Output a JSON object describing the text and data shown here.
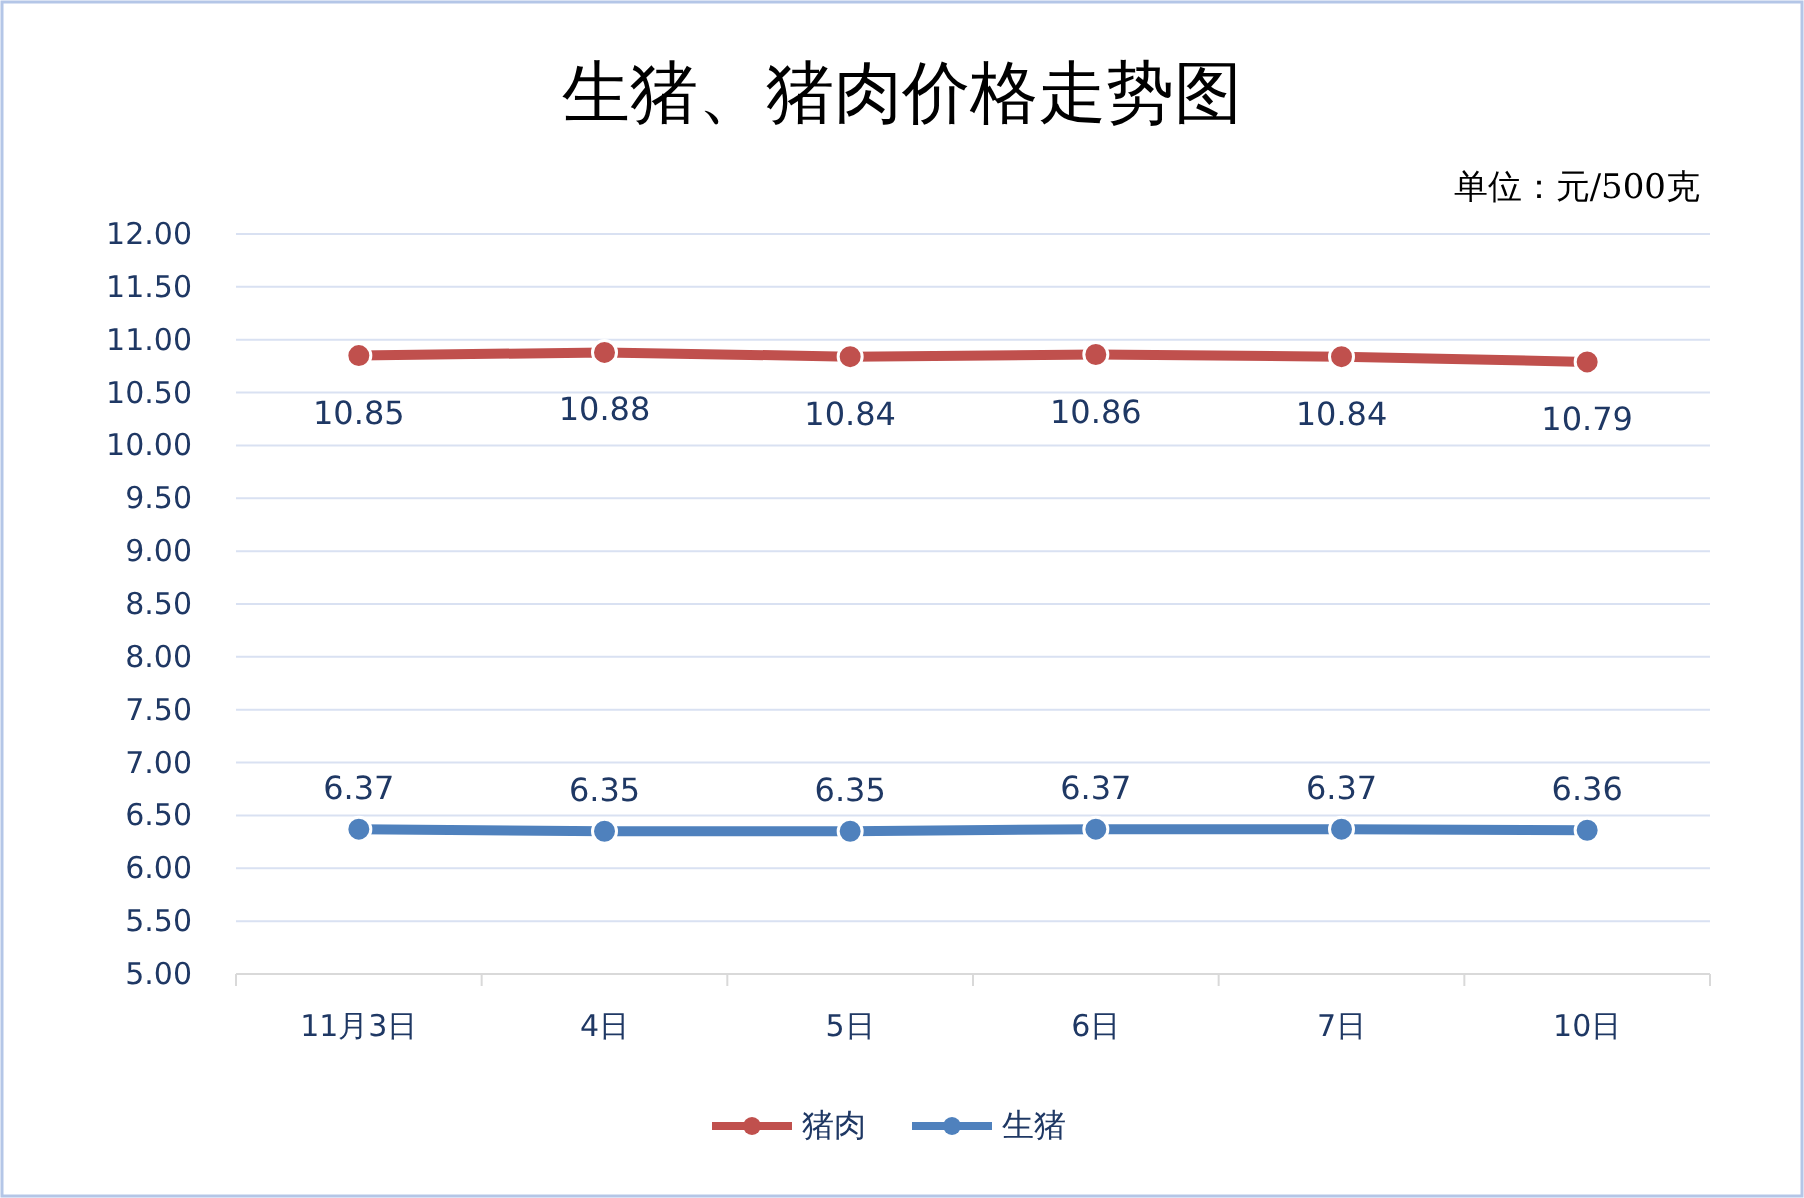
{
  "chart_data": {
    "type": "line",
    "title": "生猪、猪肉价格走势图",
    "annotations": [
      "单位：元/500克"
    ],
    "categories": [
      "11月3日",
      "4日",
      "5日",
      "6日",
      "7日",
      "10日"
    ],
    "series": [
      {
        "name": "猪肉",
        "color": "#c0504d",
        "values": [
          10.85,
          10.88,
          10.84,
          10.86,
          10.84,
          10.79
        ]
      },
      {
        "name": "生猪",
        "color": "#4f81bd",
        "values": [
          6.37,
          6.35,
          6.35,
          6.37,
          6.37,
          6.36
        ]
      }
    ],
    "ylim": [
      5,
      12
    ],
    "yticks": [
      {
        "value": 5,
        "label": "5.00"
      },
      {
        "value": 5.5,
        "label": "5.50"
      },
      {
        "value": 6,
        "label": "6.00"
      },
      {
        "value": 6.5,
        "label": "6.50"
      },
      {
        "value": 7,
        "label": "7.00"
      },
      {
        "value": 7.5,
        "label": "7.50"
      },
      {
        "value": 8,
        "label": "8.00"
      },
      {
        "value": 8.5,
        "label": "8.50"
      },
      {
        "value": 9,
        "label": "9.00"
      },
      {
        "value": 9.5,
        "label": "9.50"
      },
      {
        "value": 10,
        "label": "10.00"
      },
      {
        "value": 10.5,
        "label": "10.50"
      },
      {
        "value": 11,
        "label": "11.00"
      },
      {
        "value": 11.5,
        "label": "11.50"
      },
      {
        "value": 12,
        "label": "12.00"
      }
    ],
    "grid": "y",
    "legend": "bottom",
    "marker": "circle",
    "line_style": "solid",
    "data_labels": true
  }
}
